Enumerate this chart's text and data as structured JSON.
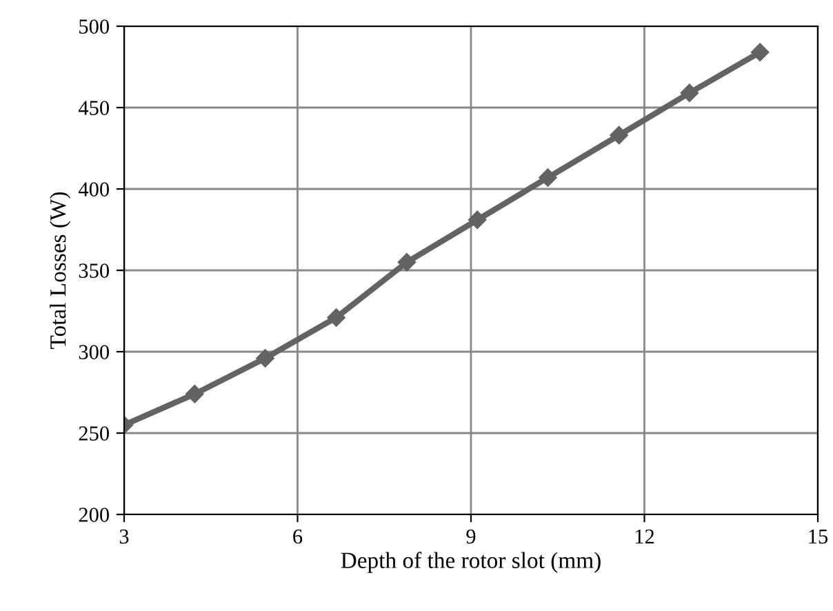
{
  "chart_data": {
    "type": "line",
    "xlabel": "Depth of the rotor slot (mm)",
    "ylabel": "Total Losses (W)",
    "x": [
      3,
      4.22,
      5.44,
      6.67,
      7.89,
      9.11,
      10.33,
      11.56,
      12.78,
      14
    ],
    "series": [
      {
        "color": "#636363",
        "values": [
          255,
          274,
          296,
          321,
          355,
          381,
          407,
          433,
          459,
          484
        ]
      }
    ],
    "xlim": [
      3,
      15
    ],
    "xticks": [
      3,
      6,
      9,
      12,
      15
    ],
    "ylim": [
      200,
      500
    ],
    "yticks": [
      200,
      250,
      300,
      350,
      400,
      450,
      500
    ],
    "grid": true,
    "marker": "diamond",
    "line_style": "solid",
    "legend": false
  }
}
